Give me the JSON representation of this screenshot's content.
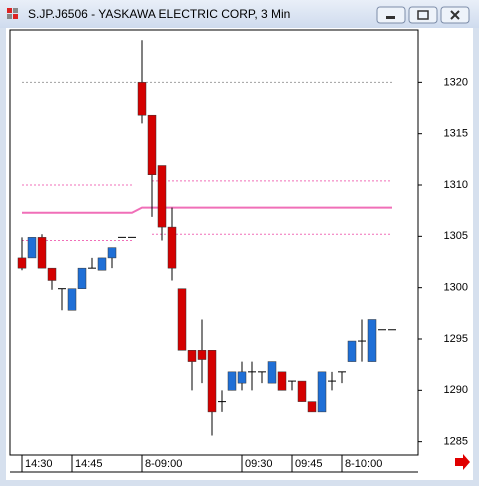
{
  "window_title": "S.JP.J6506 - YASKAWA ELECTRIC CORP, 3 Min",
  "chart_data": {
    "type": "candlestick",
    "x": [
      0,
      1,
      2,
      3,
      4,
      5,
      6,
      7,
      8,
      9,
      10,
      11,
      12,
      13,
      14,
      15,
      16,
      17,
      18,
      19,
      20,
      21,
      22,
      23,
      24,
      25,
      26,
      27,
      28,
      29,
      30,
      31,
      32,
      33,
      34,
      35,
      36,
      37
    ],
    "open": [
      1302.9,
      1302.9,
      1304.9,
      1301.9,
      1299.9,
      1297.8,
      1299.9,
      1301.9,
      1301.7,
      1302.9,
      1304.9,
      1304.9,
      1320,
      1316.8,
      1311.9,
      1305.9,
      1299.9,
      1293.9,
      1293.9,
      1293.9,
      1288.9,
      1290.0,
      1290.7,
      1291.8,
      1291.8,
      1290.7,
      1291.8,
      1290.9,
      1290.9,
      1288.9,
      1287.9,
      1290.9,
      1291.8,
      1292.8,
      1294.8,
      1292.8,
      1295.9,
      1295.9
    ],
    "high": [
      1304.9,
      1304.9,
      1305.2,
      1301.9,
      1299.9,
      1299.9,
      1301.9,
      1302.9,
      1302.9,
      1303.9,
      1304.9,
      1304.9,
      1324.1,
      1316.8,
      1311.9,
      1307.8,
      1299.9,
      1293.9,
      1296.9,
      1293.9,
      1290.0,
      1291.8,
      1292.8,
      1292.8,
      1291.8,
      1292.8,
      1291.8,
      1290.9,
      1290.9,
      1288.9,
      1291.8,
      1291.8,
      1291.8,
      1294.8,
      1296.9,
      1296.9,
      1295.9,
      1295.9
    ],
    "low": [
      1301.7,
      1302.9,
      1301.9,
      1299.8,
      1297.8,
      1297.8,
      1299.9,
      1301.9,
      1301.7,
      1301.9,
      1304.9,
      1304.9,
      1316.0,
      1306.9,
      1304.6,
      1300.7,
      1293.9,
      1290.0,
      1290.7,
      1285.6,
      1287.9,
      1290.0,
      1290.0,
      1290.0,
      1290.7,
      1290.7,
      1290.0,
      1290.0,
      1288.9,
      1287.9,
      1287.9,
      1290.0,
      1290.7,
      1292.8,
      1292.8,
      1292.8,
      1295.9,
      1295.9
    ],
    "close": [
      1301.9,
      1304.9,
      1301.9,
      1300.7,
      1299.9,
      1299.9,
      1301.9,
      1301.9,
      1302.9,
      1303.9,
      1304.9,
      1304.9,
      1316.8,
      1311.0,
      1305.9,
      1301.9,
      1293.9,
      1292.8,
      1293.0,
      1287.9,
      1288.9,
      1291.8,
      1291.8,
      1291.8,
      1291.8,
      1292.8,
      1290.0,
      1290.9,
      1288.9,
      1287.9,
      1291.8,
      1290.9,
      1291.8,
      1294.8,
      1294.8,
      1296.9,
      1295.9,
      1295.9
    ],
    "up_color": "#1f6fd6",
    "down_color": "#d40000",
    "flat_color": "#000000",
    "lines": [
      {
        "color": "#a0a0a0",
        "style": "dotted",
        "values": [
          1320,
          1320,
          1320,
          1320,
          1320,
          1320,
          1320,
          1320,
          1320,
          1320,
          1320,
          1320,
          1320,
          1320,
          1320,
          1320,
          1320,
          1320,
          1320,
          1320,
          1320,
          1320,
          1320,
          1320,
          1320,
          1320,
          1320,
          1320,
          1320,
          1320,
          1320,
          1320,
          1320,
          1320,
          1320,
          1320,
          1320,
          1320
        ]
      },
      {
        "color": "#f06fb8",
        "style": "dotted",
        "values": [
          1310,
          1310,
          1310,
          1310,
          1310,
          1310,
          1310,
          1310,
          1310,
          1310,
          1310,
          1310,
          null,
          1310.4,
          1310.4,
          1310.4,
          1310.4,
          1310.4,
          1310.4,
          1310.4,
          1310.4,
          1310.4,
          1310.4,
          1310.4,
          1310.4,
          1310.4,
          1310.4,
          1310.4,
          1310.4,
          1310.4,
          1310.4,
          1310.4,
          1310.4,
          1310.4,
          1310.4,
          1310.4,
          1310.4,
          1310.4
        ]
      },
      {
        "color": "#f06fb8",
        "style": "solid",
        "values": [
          1307.3,
          1307.3,
          1307.3,
          1307.3,
          1307.3,
          1307.3,
          1307.3,
          1307.3,
          1307.3,
          1307.3,
          1307.3,
          1307.3,
          1307.8,
          1307.8,
          1307.8,
          1307.8,
          1307.8,
          1307.8,
          1307.8,
          1307.8,
          1307.8,
          1307.8,
          1307.8,
          1307.8,
          1307.8,
          1307.8,
          1307.8,
          1307.8,
          1307.8,
          1307.8,
          1307.8,
          1307.8,
          1307.8,
          1307.8,
          1307.8,
          1307.8,
          1307.8,
          1307.8
        ]
      },
      {
        "color": "#f06fb8",
        "style": "dotted",
        "values": [
          1304.6,
          1304.6,
          1304.6,
          1304.6,
          1304.6,
          1304.6,
          1304.6,
          1304.6,
          1304.6,
          1304.6,
          1304.6,
          1304.6,
          null,
          1305.2,
          1305.2,
          1305.2,
          1305.2,
          1305.2,
          1305.2,
          1305.2,
          1305.2,
          1305.2,
          1305.2,
          1305.2,
          1305.2,
          1305.2,
          1305.2,
          1305.2,
          1305.2,
          1305.2,
          1305.2,
          1305.2,
          1305.2,
          1305.2,
          1305.2,
          1305.2,
          1305.2,
          1305.2
        ]
      }
    ],
    "xlim": [
      -1.2,
      39.6
    ],
    "xticks": [
      {
        "value": 0,
        "label": "14:30"
      },
      {
        "value": 5,
        "label": "14:45"
      },
      {
        "value": 12,
        "label": "8-09:00"
      },
      {
        "value": 22,
        "label": "09:30"
      },
      {
        "value": 27,
        "label": "09:45"
      },
      {
        "value": 32,
        "label": "8-10:00"
      }
    ],
    "ylim": [
      1283.7,
      1325.1
    ],
    "yticks": [
      1285,
      1290,
      1295,
      1300,
      1305,
      1310,
      1315,
      1320
    ]
  }
}
